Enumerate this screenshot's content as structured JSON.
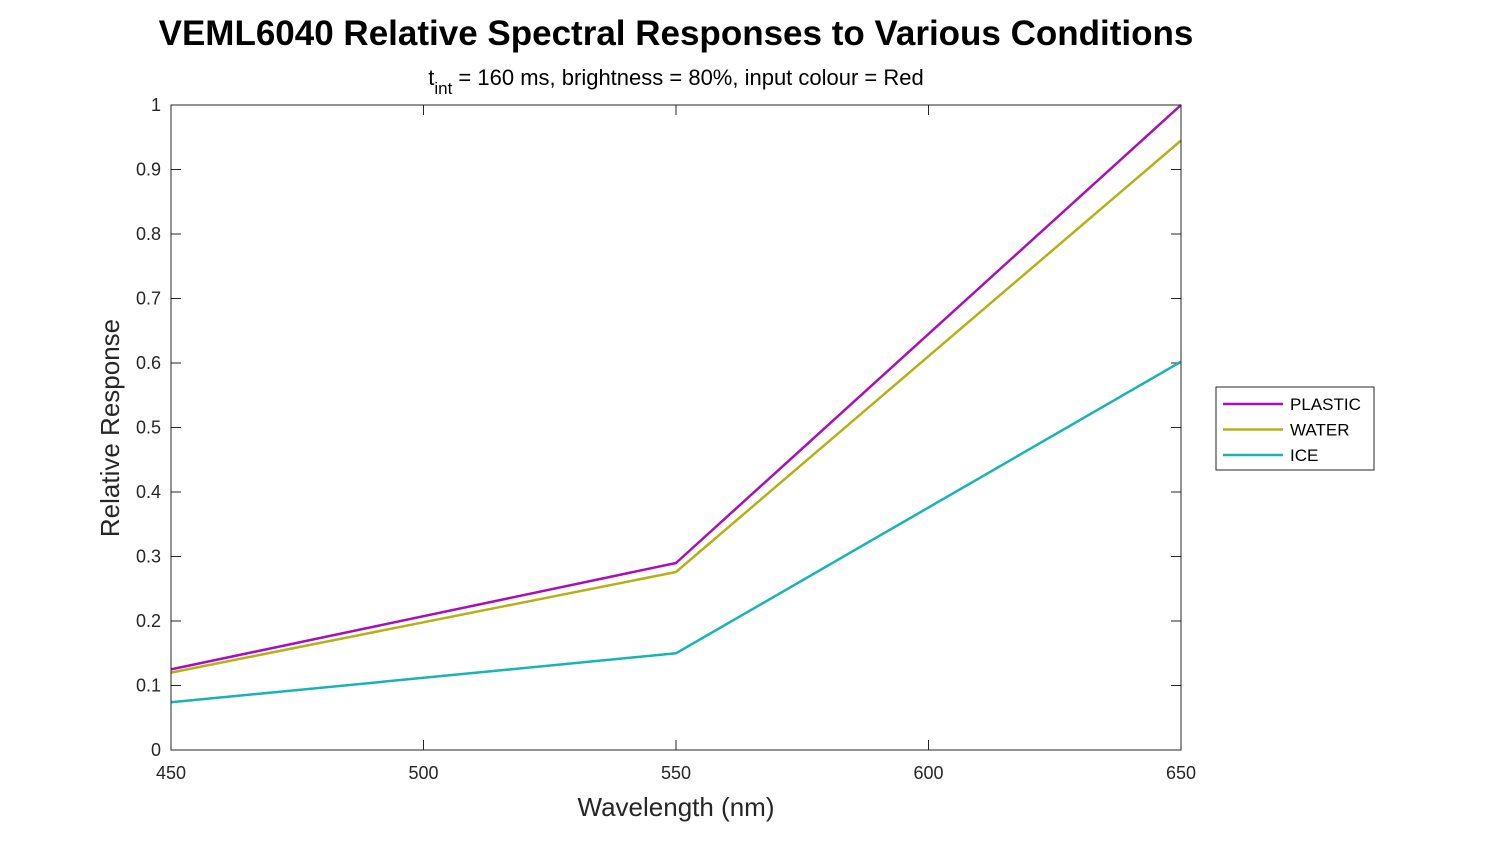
{
  "chart_data": {
    "type": "line",
    "title": "VEML6040 Relative Spectral Responses to Various Conditions",
    "subtitle": {
      "prefix": "t",
      "subscript": "int",
      "suffix": " = 160 ms, brightness = 80%, input colour = Red"
    },
    "xlabel": "Wavelength (nm)",
    "ylabel": "Relative Response",
    "xlim": [
      450,
      650
    ],
    "ylim": [
      0,
      1
    ],
    "x_ticks": [
      450,
      500,
      550,
      600,
      650
    ],
    "x_tick_labels": [
      "450",
      "500",
      "550",
      "600",
      "650"
    ],
    "y_ticks": [
      0,
      0.1,
      0.2,
      0.3,
      0.4,
      0.5,
      0.6,
      0.7,
      0.8,
      0.9,
      1
    ],
    "y_tick_labels": [
      "0",
      "0.1",
      "0.2",
      "0.3",
      "0.4",
      "0.5",
      "0.6",
      "0.7",
      "0.8",
      "0.9",
      "1"
    ],
    "grid": false,
    "legend_position": "outside-right",
    "x": [
      450,
      550,
      650
    ],
    "series": [
      {
        "name": "PLASTIC",
        "color": "#a80fb9",
        "values": [
          0.125,
          0.29,
          1.0
        ]
      },
      {
        "name": "WATER",
        "color": "#b5b014",
        "values": [
          0.12,
          0.276,
          0.945
        ]
      },
      {
        "name": "ICE",
        "color": "#18b4b5",
        "values": [
          0.074,
          0.15,
          0.602
        ]
      }
    ]
  }
}
